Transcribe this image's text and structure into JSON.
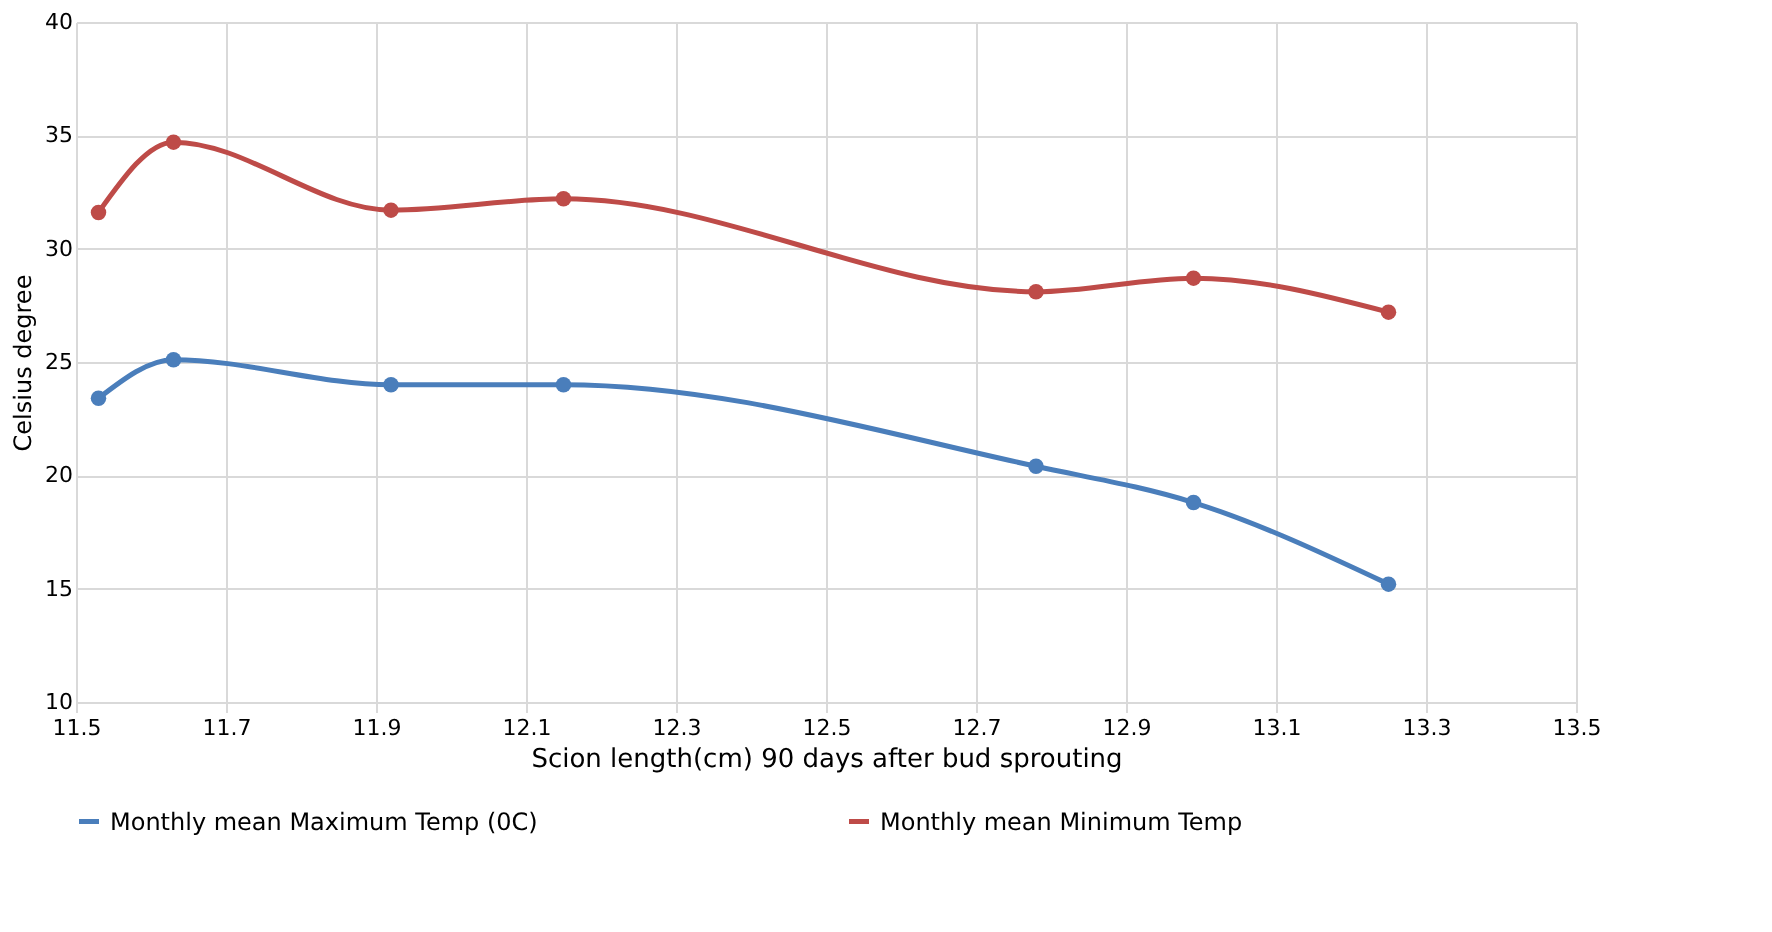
{
  "chart_data": {
    "type": "line",
    "xlabel": "Scion length(cm) 90 days after bud sprouting",
    "ylabel": "Celsius degree",
    "x": [
      11.53,
      11.63,
      11.92,
      12.15,
      12.78,
      12.99,
      13.25
    ],
    "series": [
      {
        "name": "Monthly mean Maximum Temp (0C)",
        "color": "#4a7ebb",
        "values": [
          23.4,
          25.1,
          24.0,
          24.0,
          20.4,
          18.8,
          15.2
        ]
      },
      {
        "name": "Monthly mean Minimum Temp",
        "color": "#be4b48",
        "values": [
          31.6,
          34.7,
          31.7,
          32.2,
          28.1,
          28.7,
          27.2
        ]
      }
    ],
    "xlim": [
      11.5,
      13.5
    ],
    "xticks": [
      11.5,
      11.7,
      11.9,
      12.1,
      12.3,
      12.5,
      12.7,
      12.9,
      13.1,
      13.3,
      13.5
    ],
    "ylim": [
      10,
      40
    ],
    "yticks": [
      10,
      15,
      20,
      25,
      30,
      35,
      40
    ],
    "grid": true,
    "legend": "bottom",
    "marker": "circle",
    "line_style": "solid"
  }
}
